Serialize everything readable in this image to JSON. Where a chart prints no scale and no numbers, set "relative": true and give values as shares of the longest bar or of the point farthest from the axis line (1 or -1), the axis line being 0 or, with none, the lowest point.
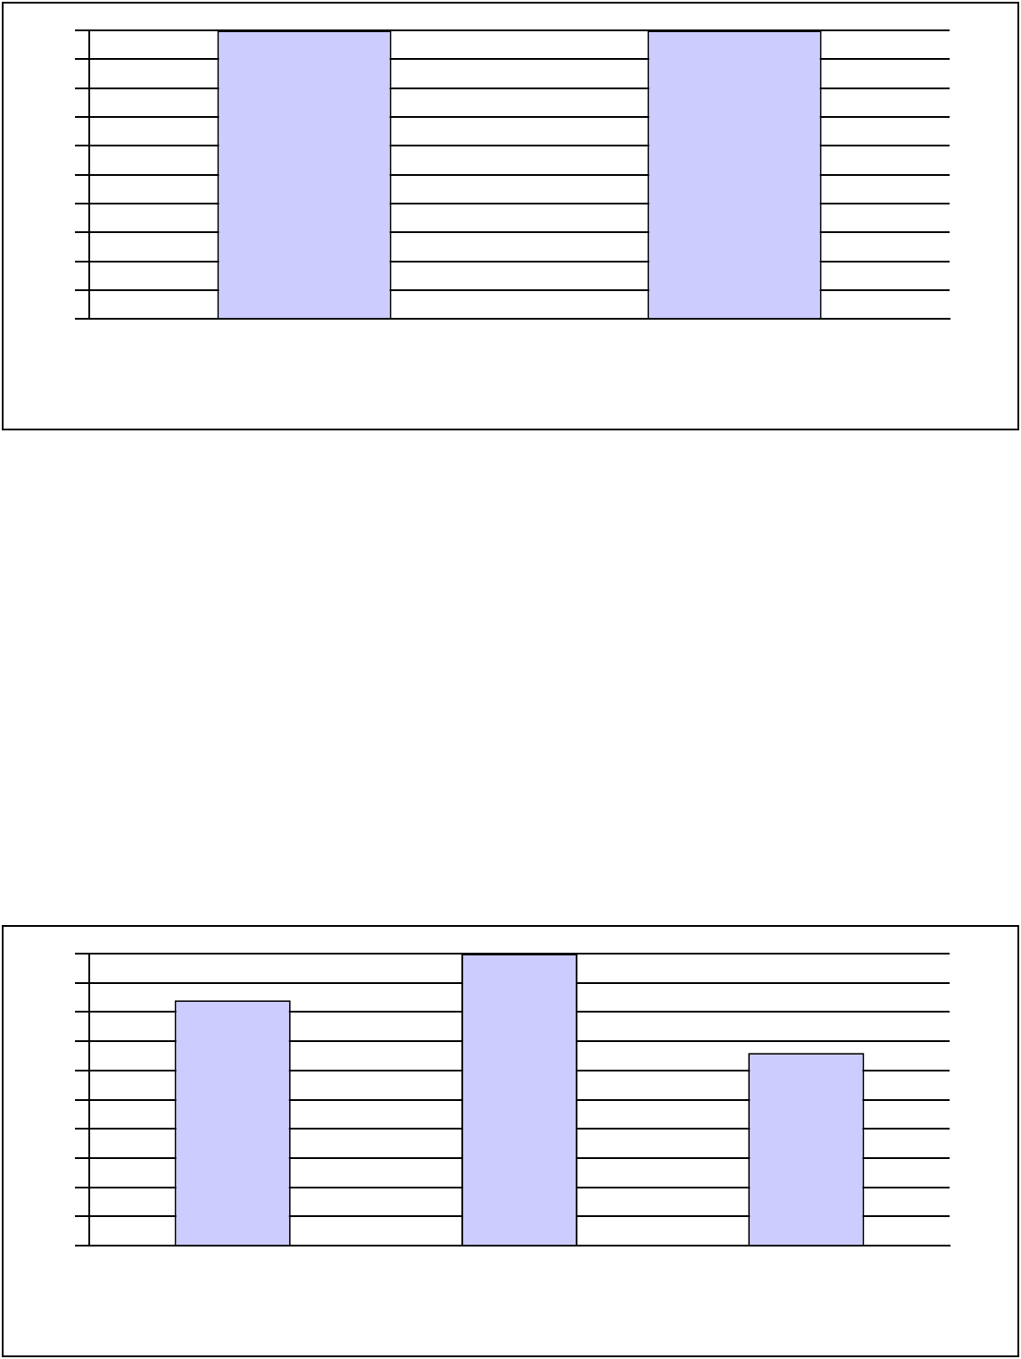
{
  "chart_data": [
    {
      "type": "bar",
      "categories": [
        null,
        null
      ],
      "values": [
        1,
        1
      ],
      "color": "#ccccff",
      "relative": true,
      "grid": "y"
    },
    {
      "type": "bar",
      "categories": [
        null,
        null,
        null
      ],
      "values": [
        0.84,
        1,
        0.66
      ],
      "color": "#ccccff",
      "relative": true,
      "grid": "y"
    }
  ]
}
